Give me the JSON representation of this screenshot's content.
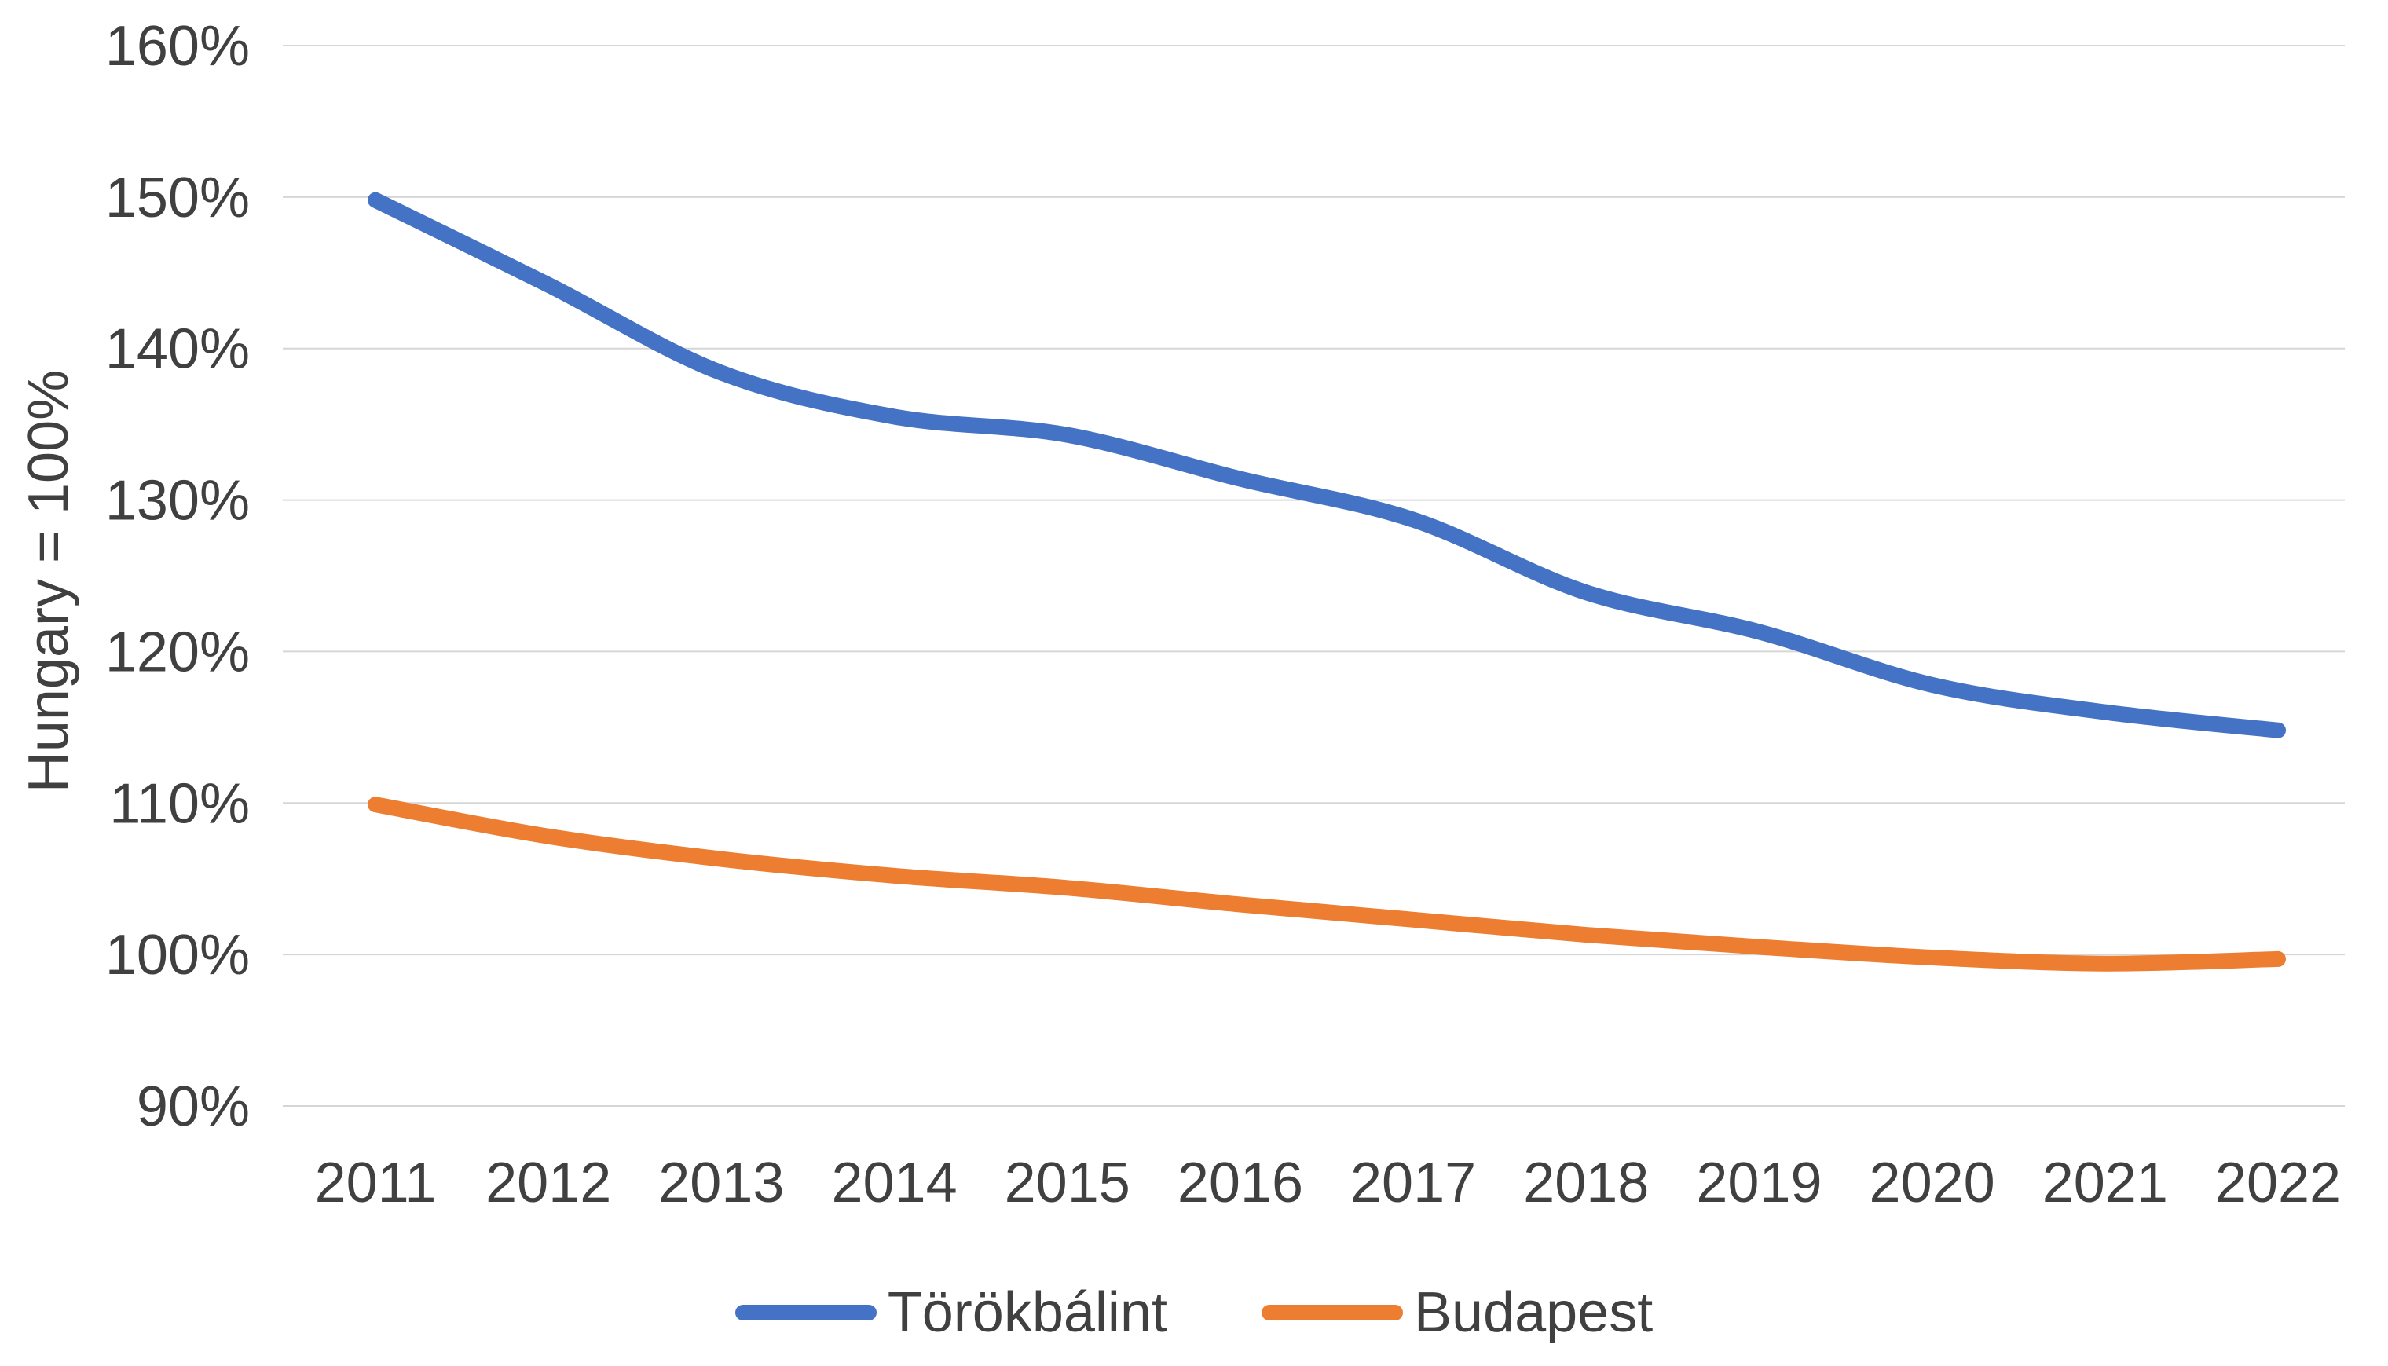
{
  "chart_data": {
    "type": "line",
    "title": "",
    "xlabel": "",
    "ylabel": "Hungary = 100%",
    "categories": [
      "2011",
      "2012",
      "2013",
      "2014",
      "2015",
      "2016",
      "2017",
      "2018",
      "2019",
      "2020",
      "2021",
      "2022"
    ],
    "series": [
      {
        "name": "Törökbálint",
        "color": "#4472C4",
        "values": [
          149.8,
          144.2,
          138.4,
          135.5,
          134.3,
          131.4,
          128.7,
          123.9,
          121.3,
          117.8,
          116.0,
          114.8
        ]
      },
      {
        "name": "Budapest",
        "color": "#ED7D31",
        "values": [
          109.9,
          107.8,
          106.3,
          105.2,
          104.4,
          103.3,
          102.3,
          101.3,
          100.5,
          99.8,
          99.4,
          99.7
        ]
      }
    ],
    "ylim": [
      90,
      160
    ],
    "yticks": [
      90,
      100,
      110,
      120,
      130,
      140,
      150,
      160
    ],
    "ytick_suffix": "%",
    "grid": true,
    "gridline_color": "#D6D6D6",
    "legend_position": "bottom"
  }
}
